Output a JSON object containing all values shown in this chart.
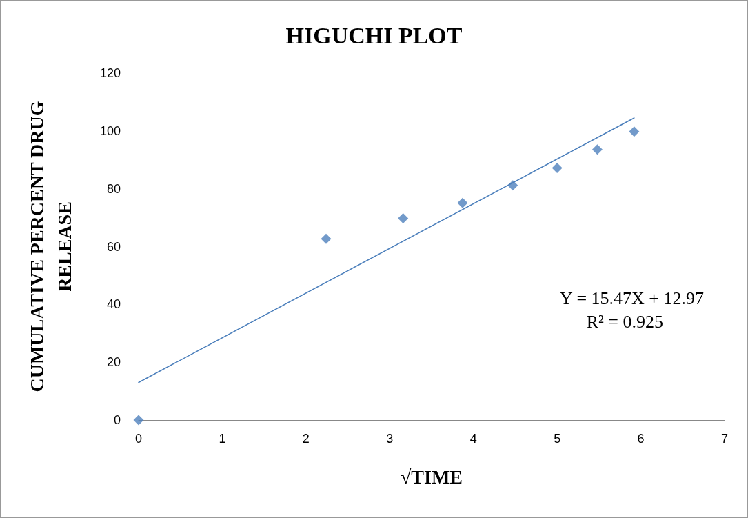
{
  "chart_data": {
    "type": "scatter",
    "title": "HIGUCHI PLOT",
    "xlabel": "√TIME",
    "ylabel": "CUMULATIVE PERCENT DRUG\nRELEASE",
    "series": [
      {
        "color": "#4f81bd",
        "marker": "diamond",
        "x": [
          0,
          2.24,
          3.16,
          3.87,
          4.47,
          5,
          5.48,
          5.92
        ],
        "values": [
          0,
          62.7,
          69.8,
          75.1,
          81.2,
          87.2,
          93.6,
          99.8
        ]
      },
      {
        "type": "line",
        "marker": "none",
        "color": "#4a7ebb",
        "x": [
          0,
          5.92
        ],
        "values": [
          13,
          104.5
        ]
      }
    ],
    "annotations": [
      "Y = 15.47X + 12.97",
      "R² = 0.925"
    ],
    "xlim": [
      0,
      7
    ],
    "xticks": [
      0,
      1,
      2,
      3,
      4,
      5,
      6,
      7
    ],
    "ylim": [
      0,
      120
    ],
    "yticks": [
      0,
      20,
      40,
      60,
      80,
      100,
      120
    ],
    "grid": false,
    "line_style": "solid"
  }
}
